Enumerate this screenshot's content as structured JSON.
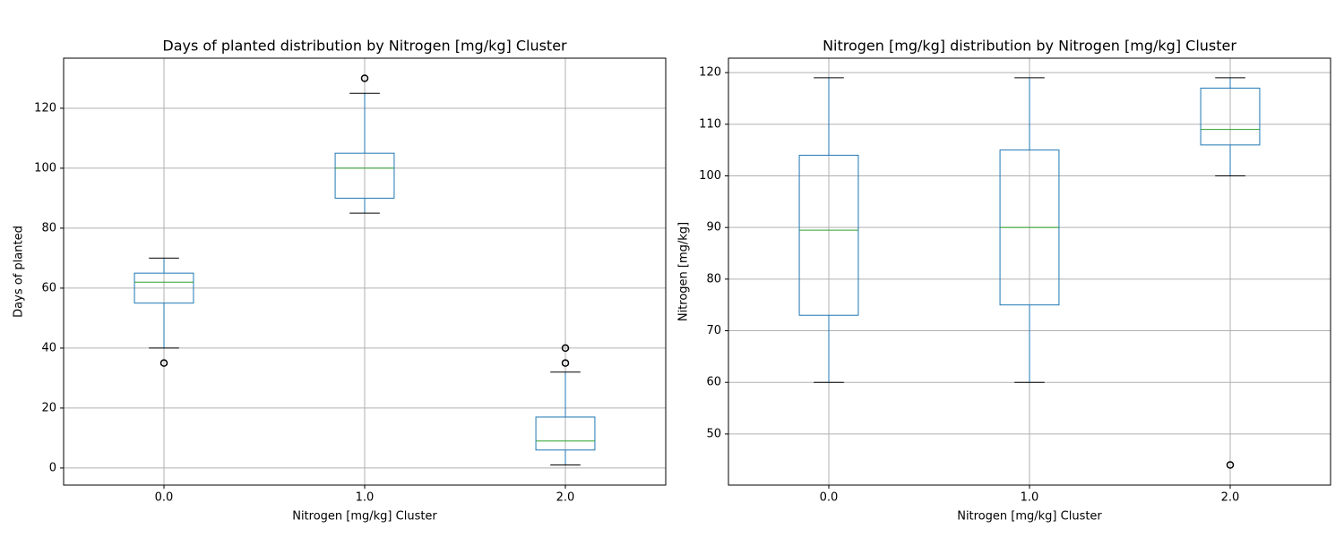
{
  "chart_data": [
    {
      "type": "box",
      "title": "Days of planted distribution by Nitrogen [mg/kg] Cluster",
      "x_label": "Nitrogen [mg/kg] Cluster",
      "y_label": "Days of planted",
      "categories": [
        "0.0",
        "1.0",
        "2.0"
      ],
      "boxes": [
        {
          "whislo": 40,
          "q1": 55,
          "median": 62,
          "q3": 65,
          "whishi": 70,
          "fliers": [
            35
          ]
        },
        {
          "whislo": 85,
          "q1": 90,
          "median": 100,
          "q3": 105,
          "whishi": 125,
          "fliers": [
            130
          ]
        },
        {
          "whislo": 1,
          "q1": 6,
          "median": 9,
          "q3": 17,
          "whishi": 32,
          "fliers": [
            35,
            40
          ]
        }
      ],
      "ylim": [
        -5.7,
        136.7
      ],
      "yticks": [
        0,
        20,
        40,
        60,
        80,
        100,
        120
      ],
      "grid": true,
      "color": "#1f77b4",
      "median_color": "#2ca02c",
      "whisker_color": "#000000"
    },
    {
      "type": "box",
      "title": "Nitrogen [mg/kg] distribution by Nitrogen [mg/kg] Cluster",
      "x_label": "Nitrogen [mg/kg] Cluster",
      "y_label": "Nitrogen [mg/kg]",
      "categories": [
        "0.0",
        "1.0",
        "2.0"
      ],
      "boxes": [
        {
          "whislo": 60,
          "q1": 73,
          "median": 89.5,
          "q3": 104,
          "whishi": 119,
          "fliers": []
        },
        {
          "whislo": 60,
          "q1": 75,
          "median": 90,
          "q3": 105,
          "whishi": 119,
          "fliers": []
        },
        {
          "whislo": 100,
          "q1": 106,
          "median": 109,
          "q3": 117,
          "whishi": 119,
          "fliers": [
            44
          ]
        }
      ],
      "ylim": [
        40.1,
        122.8
      ],
      "yticks": [
        50,
        60,
        70,
        80,
        90,
        100,
        110,
        120
      ],
      "grid": true,
      "color": "#1f77b4",
      "median_color": "#2ca02c",
      "whisker_color": "#000000"
    }
  ]
}
